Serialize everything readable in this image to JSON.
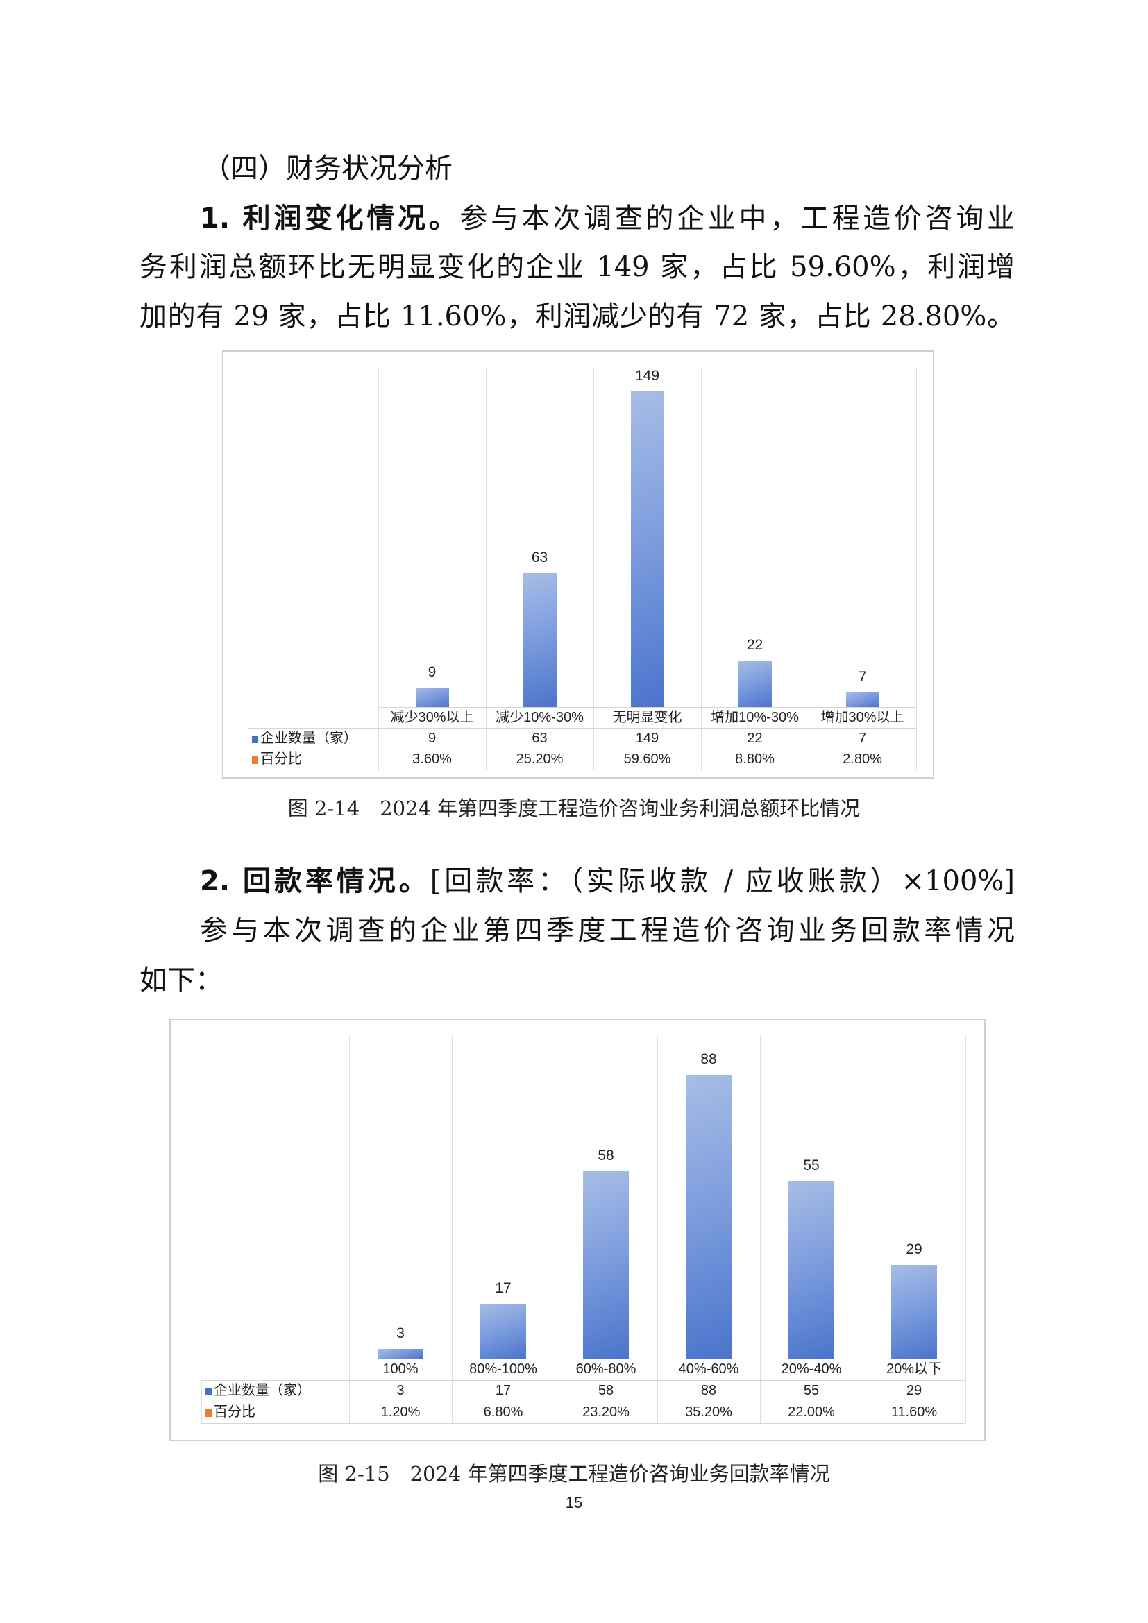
{
  "section_heading": "（四）财务状况分析",
  "para1": {
    "lead": "1. 利润变化情况。",
    "lines": [
      "参与本次调查的企业中，工程造价咨询业",
      "务利润总额环比无明显变化的企业 149 家，占比 59.60%，利润增",
      "加的有 29 家，占比 11.60%，利润减少的有 72 家，占比 28.80%。"
    ]
  },
  "para2": {
    "lead": "2. 回款率情况。",
    "formula": "[回款率：（实际收款 / 应收账款）×100%]",
    "lines": [
      "参与本次调查的企业第四季度工程造价咨询业务回款率情况",
      "如下："
    ]
  },
  "chart_data": [
    {
      "type": "bar",
      "categories": [
        "减少30%以上",
        "减少10%-30%",
        "无明显变化",
        "增加10%-30%",
        "增加30%以上"
      ],
      "series": [
        {
          "name": "企业数量（家）",
          "values": [
            9,
            63,
            149,
            22,
            7
          ],
          "color": "#4472c4"
        },
        {
          "name": "百分比",
          "values": [
            "3.60%",
            "25.20%",
            "59.60%",
            "8.80%",
            "2.80%"
          ],
          "color": "#ed7d31"
        }
      ],
      "ylim": [
        0,
        160
      ],
      "grid": "vertical",
      "legend": "data-table",
      "caption": "图 2-14　2024 年第四季度工程造价咨询业务利润总额环比情况"
    },
    {
      "type": "bar",
      "categories": [
        "100%",
        "80%-100%",
        "60%-80%",
        "40%-60%",
        "20%-40%",
        "20%以下"
      ],
      "series": [
        {
          "name": "企业数量（家）",
          "values": [
            3,
            17,
            58,
            88,
            55,
            29
          ],
          "color": "#4472c4"
        },
        {
          "name": "百分比",
          "values": [
            "1.20%",
            "6.80%",
            "23.20%",
            "35.20%",
            "22.00%",
            "11.60%"
          ],
          "color": "#ed7d31"
        }
      ],
      "ylim": [
        0,
        100
      ],
      "grid": "vertical",
      "legend": "data-table",
      "caption": "图 2-15　2024 年第四季度工程造价咨询业务回款率情况"
    }
  ],
  "page_number": "15"
}
